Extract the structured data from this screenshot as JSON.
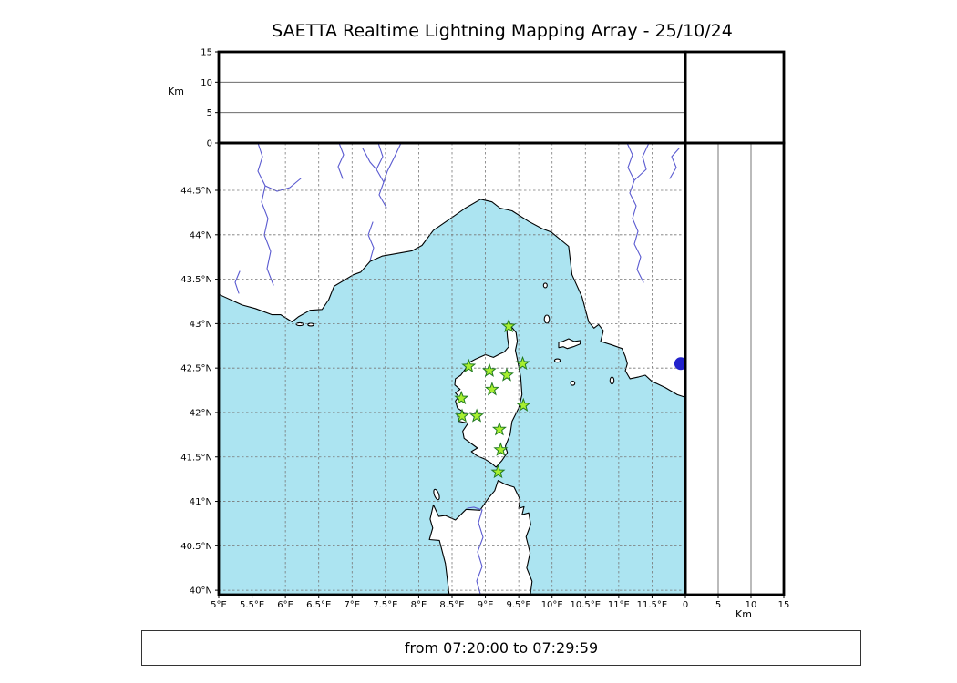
{
  "title": "SAETTA Realtime Lightning Mapping Array - 25/10/24",
  "status_bar": {
    "text": "from 07:20:00 to 07:29:59"
  },
  "axes": {
    "altitude_top": {
      "unit": "Km",
      "ticks": [
        "0",
        "5",
        "10",
        "15"
      ],
      "max": 15,
      "gridlines": [
        5,
        10
      ]
    },
    "altitude_right": {
      "unit": "Km",
      "ticks": [
        "0",
        "5",
        "10",
        "15"
      ],
      "max": 15,
      "gridlines": [
        5,
        10
      ]
    },
    "latitude": {
      "ticks": [
        "40°N",
        "40.5°N",
        "41°N",
        "41.5°N",
        "42°N",
        "42.5°N",
        "43°N",
        "43.5°N",
        "44°N",
        "44.5°N"
      ]
    },
    "longitude": {
      "ticks": [
        "5°E",
        "5.5°E",
        "6°E",
        "6.5°E",
        "7°E",
        "7.5°E",
        "8°E",
        "8.5°E",
        "9°E",
        "9.5°E",
        "10°E",
        "10.5°E",
        "11°E",
        "11.5°E"
      ]
    }
  },
  "map_extent": {
    "lon_min": 5.0,
    "lon_max": 12.0,
    "lat_min": 39.95,
    "lat_max": 45.033
  },
  "stations": [
    {
      "lon": 9.35,
      "lat": 42.97
    },
    {
      "lon": 8.75,
      "lat": 42.52
    },
    {
      "lon": 9.06,
      "lat": 42.47
    },
    {
      "lon": 9.32,
      "lat": 42.42
    },
    {
      "lon": 9.56,
      "lat": 42.55
    },
    {
      "lon": 9.1,
      "lat": 42.26
    },
    {
      "lon": 8.64,
      "lat": 42.16
    },
    {
      "lon": 9.57,
      "lat": 42.08
    },
    {
      "lon": 8.65,
      "lat": 41.96
    },
    {
      "lon": 8.87,
      "lat": 41.96
    },
    {
      "lon": 9.21,
      "lat": 41.81
    },
    {
      "lon": 9.23,
      "lat": 41.58
    },
    {
      "lon": 9.19,
      "lat": 41.33
    }
  ],
  "event_marker": {
    "lon": 11.93,
    "lat": 42.55,
    "color": "#2222cc"
  },
  "colors": {
    "sea": "#ace4f1",
    "land": "#ffffff",
    "coast": "#000000",
    "river": "#5a5ad0",
    "grid": "#777777",
    "station_fill": "#a8ef2f",
    "station_edge": "#217a21"
  }
}
